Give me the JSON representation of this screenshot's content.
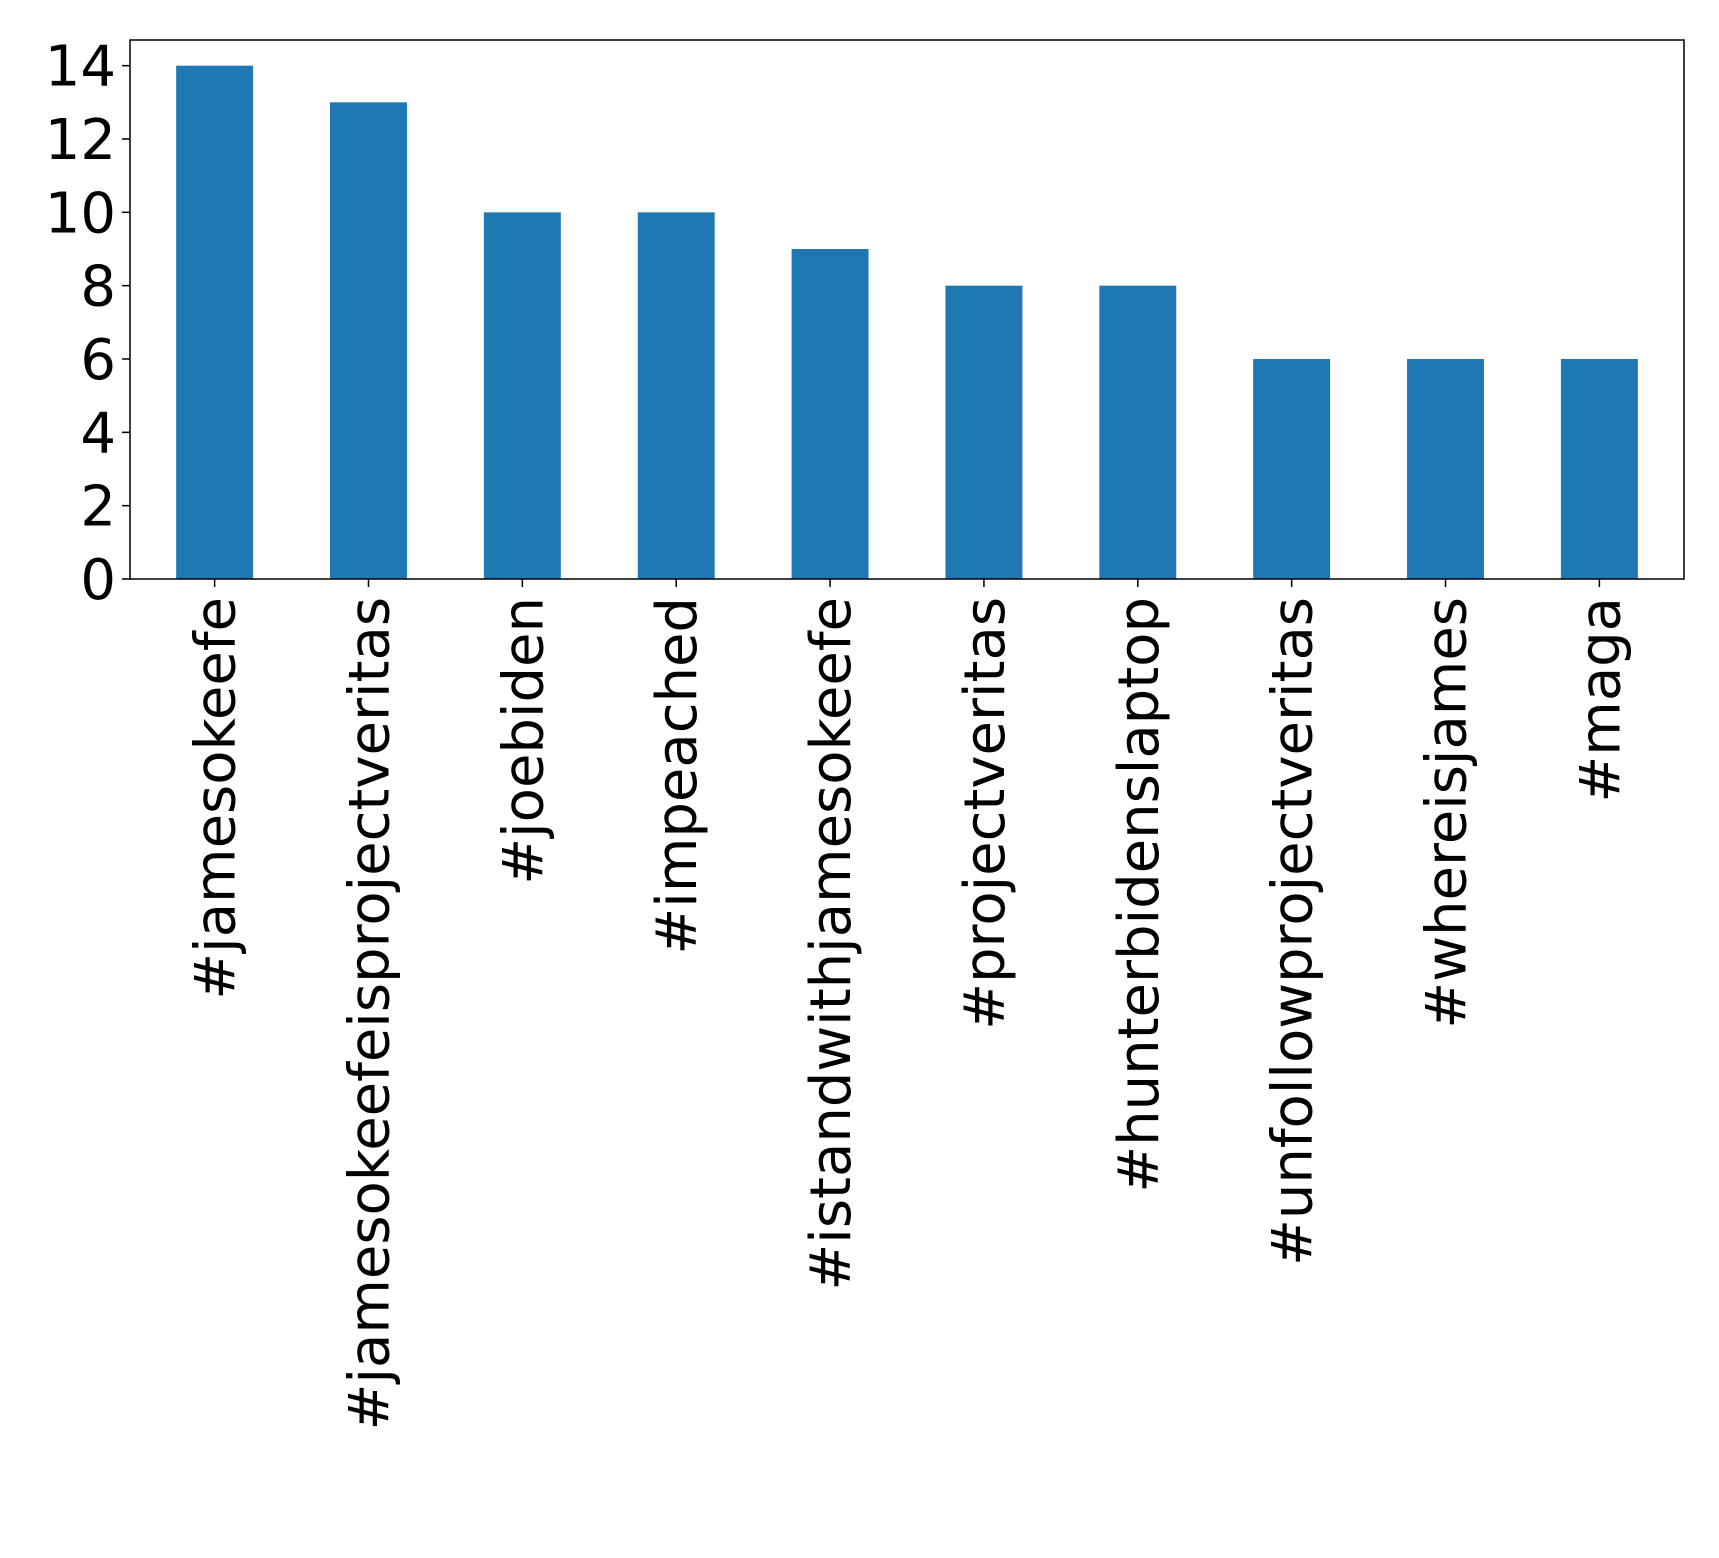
{
  "chart_data": {
    "type": "bar",
    "title": "",
    "xlabel": "",
    "ylabel": "",
    "categories": [
      "#jamesokeefe",
      "#jamesokeefeisprojectveritas",
      "#joebiden",
      "#impeached",
      "#istandwithjamesokeefe",
      "#projectveritas",
      "#hunterbidenslaptop",
      "#unfollowprojectveritas",
      "#whereisjames",
      "#maga"
    ],
    "values": [
      14,
      13,
      10,
      10,
      9,
      8,
      8,
      6,
      6,
      6
    ],
    "ylim": [
      0,
      14.7
    ],
    "yticks": [
      0,
      2,
      4,
      6,
      8,
      10,
      12,
      14
    ],
    "bar_color": "#1f77b4",
    "grid": false,
    "legend": "none"
  }
}
